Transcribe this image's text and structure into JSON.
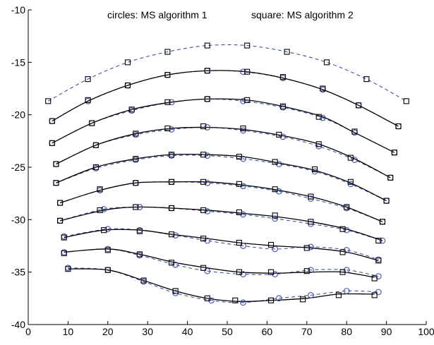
{
  "chart_data": {
    "type": "line",
    "xlim": [
      0,
      100
    ],
    "ylim": [
      -40,
      -10
    ],
    "x_ticks": [
      "0",
      "10",
      "20",
      "30",
      "40",
      "50",
      "60",
      "70",
      "80",
      "90",
      "100"
    ],
    "y_ticks": [
      "-10",
      "-15",
      "-20",
      "-25",
      "-30",
      "-35",
      "-40"
    ],
    "grid": false,
    "annotations": {
      "circles": "circles: MS algorithm 1",
      "squares": "square: MS algorithm 2"
    },
    "styles": {
      "solid_color": "#000000",
      "dashed_color": "#3f51a8",
      "marker_circle_color": "#3f51a8",
      "marker_square_color": "#000000"
    },
    "top_dashed_curve": {
      "x": [
        5,
        15,
        25,
        35,
        45,
        55,
        65,
        75,
        85,
        95
      ],
      "y": [
        -18.7,
        -16.6,
        -15.0,
        -14.0,
        -13.4,
        -13.4,
        -14.0,
        -15.0,
        -16.6,
        -18.7
      ]
    },
    "series": [
      {
        "solid": {
          "x": [
            6,
            15,
            25,
            35,
            45,
            55,
            64,
            74,
            83,
            93
          ],
          "y": [
            -20.6,
            -18.7,
            -17.2,
            -16.2,
            -15.8,
            -15.9,
            -16.5,
            -17.6,
            -19.1,
            -21.1
          ]
        },
        "circles": {
          "x": [
            6,
            15,
            25,
            35,
            45,
            54,
            64,
            74,
            83,
            93
          ],
          "y": [
            -20.6,
            -18.7,
            -17.2,
            -16.2,
            -15.8,
            -15.9,
            -16.5,
            -17.6,
            -19.1,
            -21.1
          ]
        },
        "squares": {
          "x": [
            6,
            15,
            25,
            35,
            45,
            55,
            64,
            74,
            83,
            93
          ],
          "y": [
            -20.6,
            -18.6,
            -17.2,
            -16.2,
            -15.8,
            -15.9,
            -16.4,
            -17.5,
            -19.1,
            -21.1
          ]
        }
      },
      {
        "solid": {
          "x": [
            6,
            16,
            26,
            36,
            45,
            55,
            64,
            74,
            82,
            92
          ],
          "y": [
            -22.7,
            -20.8,
            -19.5,
            -18.8,
            -18.5,
            -18.6,
            -19.2,
            -20.2,
            -21.7,
            -23.6
          ]
        },
        "circles": {
          "x": [
            6,
            16,
            26,
            36,
            45,
            54,
            64,
            74,
            82,
            92
          ],
          "y": [
            -22.7,
            -20.8,
            -19.6,
            -18.8,
            -18.5,
            -18.7,
            -19.3,
            -20.3,
            -21.7,
            -23.6
          ]
        },
        "squares": {
          "x": [
            6,
            16,
            26,
            35,
            45,
            55,
            64,
            73,
            82,
            92
          ],
          "y": [
            -22.7,
            -20.8,
            -19.5,
            -18.8,
            -18.5,
            -18.6,
            -19.2,
            -20.2,
            -21.6,
            -23.6
          ]
        }
      },
      {
        "solid": {
          "x": [
            7,
            17,
            27,
            36,
            45,
            54,
            64,
            73,
            82,
            91
          ],
          "y": [
            -24.7,
            -22.9,
            -21.8,
            -21.3,
            -21.2,
            -21.4,
            -22.0,
            -22.8,
            -24.2,
            -26.0
          ]
        },
        "circles": {
          "x": [
            7,
            17,
            27,
            36,
            45,
            54,
            64,
            73,
            82,
            91
          ],
          "y": [
            -24.7,
            -22.9,
            -21.9,
            -21.4,
            -21.2,
            -21.5,
            -22.1,
            -23.0,
            -24.3,
            -26.0
          ]
        },
        "squares": {
          "x": [
            7,
            17,
            27,
            35,
            44,
            54,
            63,
            73,
            81,
            91
          ],
          "y": [
            -24.7,
            -22.9,
            -21.8,
            -21.3,
            -21.1,
            -21.3,
            -21.9,
            -22.8,
            -24.1,
            -26.0
          ]
        }
      },
      {
        "solid": {
          "x": [
            7,
            17,
            27,
            36,
            45,
            54,
            63,
            72,
            81,
            90
          ],
          "y": [
            -26.5,
            -25.0,
            -24.2,
            -23.8,
            -23.8,
            -24.0,
            -24.6,
            -25.3,
            -26.5,
            -28.2
          ]
        },
        "circles": {
          "x": [
            7,
            17,
            27,
            36,
            45,
            54,
            63,
            72,
            81,
            90
          ],
          "y": [
            -26.5,
            -25.1,
            -24.3,
            -23.9,
            -23.9,
            -24.2,
            -24.7,
            -25.4,
            -26.6,
            -28.2
          ]
        },
        "squares": {
          "x": [
            7,
            17,
            27,
            36,
            44,
            53,
            62,
            72,
            81,
            90
          ],
          "y": [
            -26.5,
            -25.0,
            -24.2,
            -23.8,
            -23.8,
            -24.0,
            -24.5,
            -25.2,
            -26.4,
            -28.2
          ]
        }
      },
      {
        "solid": {
          "x": [
            8,
            18,
            27,
            36,
            45,
            54,
            63,
            72,
            80,
            89
          ],
          "y": [
            -28.4,
            -27.2,
            -26.5,
            -26.4,
            -26.4,
            -26.7,
            -27.2,
            -27.9,
            -28.8,
            -30.2
          ]
        },
        "circles": {
          "x": [
            8,
            18,
            27,
            36,
            45,
            54,
            63,
            71,
            80,
            89
          ],
          "y": [
            -28.4,
            -27.2,
            -26.5,
            -26.4,
            -26.5,
            -26.8,
            -27.3,
            -28.0,
            -28.9,
            -30.2
          ]
        },
        "squares": {
          "x": [
            8,
            18,
            27,
            36,
            44,
            53,
            62,
            71,
            80,
            89
          ],
          "y": [
            -28.4,
            -27.1,
            -26.5,
            -26.4,
            -26.4,
            -26.6,
            -27.1,
            -27.8,
            -28.8,
            -30.2
          ]
        }
      },
      {
        "solid": {
          "x": [
            8,
            19,
            27,
            36,
            45,
            54,
            62,
            71,
            80,
            89
          ],
          "y": [
            -30.1,
            -29.1,
            -28.8,
            -28.9,
            -29.1,
            -29.4,
            -29.7,
            -30.2,
            -30.9,
            -32.0
          ]
        },
        "circles": {
          "x": [
            8,
            19,
            28,
            36,
            45,
            54,
            62,
            71,
            80,
            89
          ],
          "y": [
            -30.1,
            -29.0,
            -28.8,
            -28.9,
            -29.2,
            -29.5,
            -29.9,
            -30.4,
            -31.0,
            -32.0
          ]
        },
        "squares": {
          "x": [
            8,
            18,
            27,
            36,
            44,
            53,
            62,
            71,
            79,
            88
          ],
          "y": [
            -30.1,
            -29.1,
            -28.8,
            -28.9,
            -29.1,
            -29.3,
            -29.6,
            -30.2,
            -30.9,
            -32.0
          ]
        }
      },
      {
        "solid": {
          "x": [
            9,
            19,
            28,
            36,
            45,
            53,
            62,
            71,
            80,
            88
          ],
          "y": [
            -31.7,
            -31.0,
            -31.0,
            -31.4,
            -31.8,
            -32.2,
            -32.5,
            -32.7,
            -33.1,
            -33.9
          ]
        },
        "circles": {
          "x": [
            9,
            20,
            28,
            37,
            45,
            54,
            62,
            71,
            80,
            88
          ],
          "y": [
            -31.6,
            -30.9,
            -31.0,
            -31.5,
            -32.0,
            -32.5,
            -32.8,
            -32.6,
            -32.9,
            -33.8
          ]
        },
        "squares": {
          "x": [
            9,
            19,
            28,
            36,
            44,
            53,
            61,
            70,
            79,
            88
          ],
          "y": [
            -31.7,
            -31.0,
            -31.1,
            -31.4,
            -31.8,
            -32.2,
            -32.4,
            -32.7,
            -33.1,
            -33.9
          ]
        }
      },
      {
        "solid": {
          "x": [
            9,
            20,
            28,
            37,
            45,
            53,
            62,
            71,
            79,
            87
          ],
          "y": [
            -33.1,
            -32.8,
            -33.3,
            -34.1,
            -34.6,
            -35.0,
            -35.1,
            -35.0,
            -35.0,
            -35.5
          ]
        },
        "circles": {
          "x": [
            9,
            20,
            28,
            37,
            45,
            54,
            62,
            71,
            80,
            88
          ],
          "y": [
            -33.1,
            -32.8,
            -33.4,
            -34.3,
            -34.9,
            -35.2,
            -35.2,
            -34.8,
            -34.8,
            -35.4
          ]
        },
        "squares": {
          "x": [
            9,
            20,
            28,
            36,
            44,
            53,
            61,
            70,
            79,
            87
          ],
          "y": [
            -33.2,
            -32.9,
            -33.3,
            -34.1,
            -34.6,
            -35.0,
            -35.0,
            -34.9,
            -35.0,
            -35.6
          ]
        }
      },
      {
        "solid": {
          "x": [
            10,
            20,
            29,
            37,
            45,
            53,
            61,
            70,
            78,
            87
          ],
          "y": [
            -34.7,
            -34.8,
            -35.8,
            -36.8,
            -37.5,
            -37.8,
            -37.7,
            -37.5,
            -37.1,
            -37.1
          ]
        },
        "circles": {
          "x": [
            10,
            20,
            29,
            37,
            46,
            54,
            63,
            71,
            80,
            88
          ],
          "y": [
            -34.6,
            -34.8,
            -35.9,
            -37.0,
            -37.7,
            -37.9,
            -37.5,
            -37.2,
            -36.8,
            -36.9
          ]
        },
        "squares": {
          "x": [
            10,
            20,
            29,
            37,
            45,
            52,
            61,
            69,
            78,
            87
          ],
          "y": [
            -34.7,
            -34.8,
            -35.8,
            -36.8,
            -37.5,
            -37.7,
            -37.7,
            -37.6,
            -37.2,
            -37.2
          ]
        }
      }
    ]
  }
}
